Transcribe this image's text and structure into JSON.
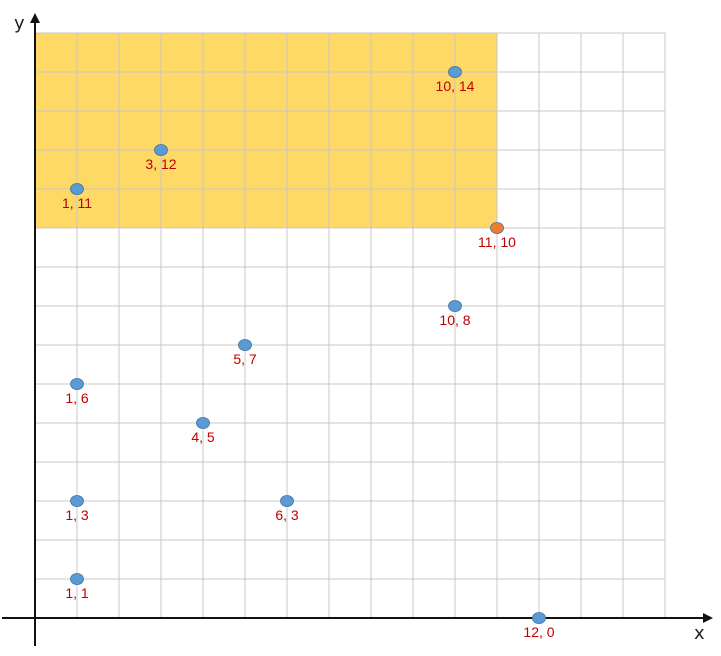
{
  "chart_data": {
    "type": "scatter",
    "xlabel": "x",
    "ylabel": "y",
    "xlim": [
      0,
      15
    ],
    "ylim": [
      0,
      15
    ],
    "grid": true,
    "highlight_region": {
      "x": [
        0,
        11
      ],
      "y": [
        10,
        15
      ],
      "color": "#ffd966"
    },
    "series": [
      {
        "color": "#5b9bd5",
        "points": [
          {
            "x": 10,
            "y": 14,
            "label": "10, 14"
          },
          {
            "x": 3,
            "y": 12,
            "label": "3, 12"
          },
          {
            "x": 1,
            "y": 11,
            "label": "1, 11"
          },
          {
            "x": 10,
            "y": 8,
            "label": "10, 8"
          },
          {
            "x": 5,
            "y": 7,
            "label": "5, 7"
          },
          {
            "x": 1,
            "y": 6,
            "label": "1, 6"
          },
          {
            "x": 4,
            "y": 5,
            "label": "4, 5"
          },
          {
            "x": 1,
            "y": 3,
            "label": "1, 3"
          },
          {
            "x": 6,
            "y": 3,
            "label": "6, 3"
          },
          {
            "x": 1,
            "y": 1,
            "label": "1, 1"
          },
          {
            "x": 12,
            "y": 0,
            "label": "12, 0"
          }
        ]
      },
      {
        "color": "#ed7d31",
        "points": [
          {
            "x": 11,
            "y": 10,
            "label": "11, 10"
          }
        ]
      }
    ]
  }
}
